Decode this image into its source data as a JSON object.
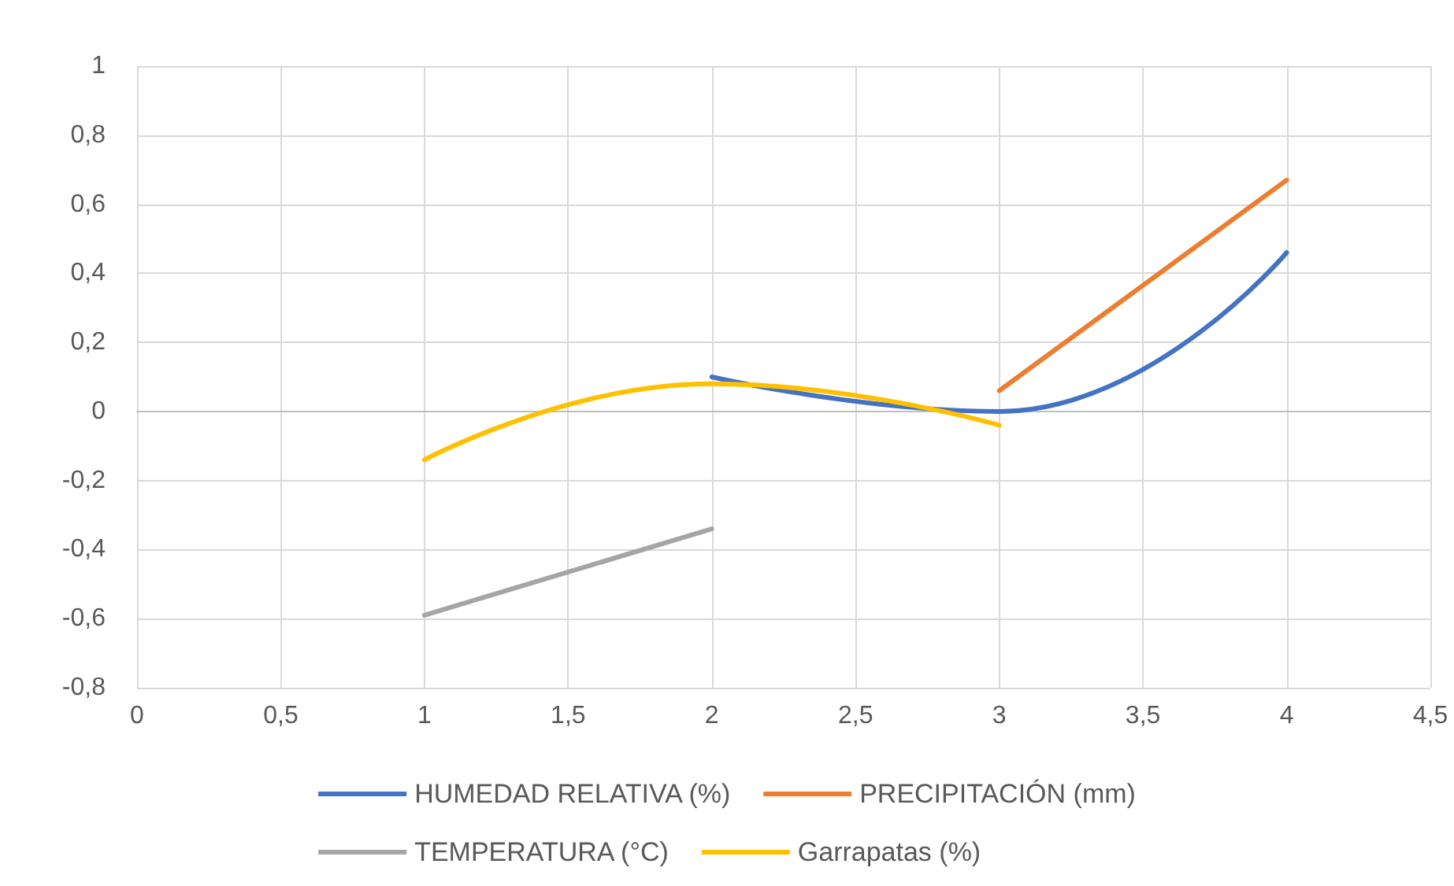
{
  "chart_data": {
    "type": "line",
    "xlim": [
      0,
      4.5
    ],
    "xticks": [
      0,
      {
        "value": 0.5,
        "label": "0,5"
      },
      1,
      {
        "value": 1.5,
        "label": "1,5"
      },
      2,
      {
        "value": 2.5,
        "label": "2,5"
      },
      3,
      {
        "value": 3.5,
        "label": "3,5"
      },
      4,
      {
        "value": 4.5,
        "label": "4,5"
      }
    ],
    "ylim": [
      -0.8,
      1
    ],
    "yticks": [
      {
        "value": -0.8,
        "label": "-0,8"
      },
      {
        "value": -0.6,
        "label": "-0,6"
      },
      {
        "value": -0.4,
        "label": "-0,4"
      },
      {
        "value": -0.2,
        "label": "-0,2"
      },
      0,
      {
        "value": 0.2,
        "label": "0,2"
      },
      {
        "value": 0.4,
        "label": "0,4"
      },
      {
        "value": 0.6,
        "label": "0,6"
      },
      {
        "value": 0.8,
        "label": "0,8"
      },
      1
    ],
    "grid": true,
    "legend": "bottom",
    "marker": "none",
    "line_style": "solid",
    "series": [
      {
        "name": "HUMEDAD RELATIVA (%)",
        "color": "#4472c4",
        "x": [
          2,
          3,
          4
        ],
        "values": [
          0.1,
          0,
          0.46
        ]
      },
      {
        "name": "PRECIPITACIÓN (mm)",
        "color": "#ed7d31",
        "x": [
          3,
          4
        ],
        "values": [
          0.06,
          0.67
        ]
      },
      {
        "name": "TEMPERATURA (°C)",
        "color": "#a5a5a5",
        "x": [
          1,
          2
        ],
        "values": [
          -0.59,
          -0.34
        ]
      },
      {
        "name": "Garrapatas (%)",
        "color": "#ffc000",
        "x": [
          1,
          2,
          3
        ],
        "values": [
          -0.14,
          0.08,
          -0.04
        ]
      }
    ]
  }
}
